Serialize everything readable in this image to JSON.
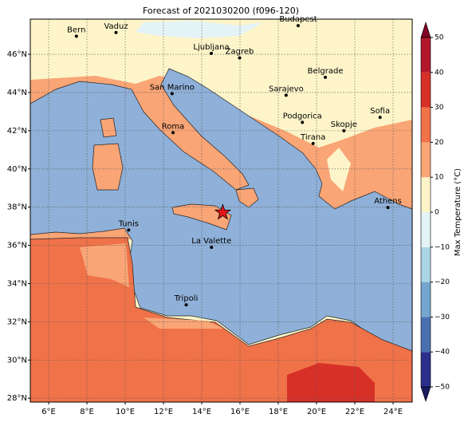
{
  "title": "Forecast of 2021030200 (f096-120)",
  "map": {
    "lonlim": [
      5.04,
      25.0
    ],
    "latlim": [
      27.8,
      47.84
    ],
    "lonticks": [
      {
        "value": 6,
        "label": "6°E"
      },
      {
        "value": 8,
        "label": "8°E"
      },
      {
        "value": 10,
        "label": "10°E"
      },
      {
        "value": 12,
        "label": "12°E"
      },
      {
        "value": 14,
        "label": "14°E"
      },
      {
        "value": 16,
        "label": "16°E"
      },
      {
        "value": 18,
        "label": "18°E"
      },
      {
        "value": 20,
        "label": "20°E"
      },
      {
        "value": 22,
        "label": "22°E"
      },
      {
        "value": 24,
        "label": "24°E"
      }
    ],
    "latticks": [
      {
        "value": 28,
        "label": "28°N"
      },
      {
        "value": 30,
        "label": "30°N"
      },
      {
        "value": 32,
        "label": "32°N"
      },
      {
        "value": 34,
        "label": "34°N"
      },
      {
        "value": 36,
        "label": "36°N"
      },
      {
        "value": 38,
        "label": "38°N"
      },
      {
        "value": 40,
        "label": "40°N"
      },
      {
        "value": 42,
        "label": "42°N"
      },
      {
        "value": 44,
        "label": "44°N"
      },
      {
        "value": 46,
        "label": "46°N"
      }
    ],
    "grid": true,
    "cities": [
      {
        "name": "Bern",
        "lon": 7.45,
        "lat": 46.95
      },
      {
        "name": "Vaduz",
        "lon": 9.52,
        "lat": 47.14
      },
      {
        "name": "Budapest",
        "lon": 19.04,
        "lat": 47.5
      },
      {
        "name": "Ljubljana",
        "lon": 14.5,
        "lat": 46.05
      },
      {
        "name": "Zagreb",
        "lon": 15.98,
        "lat": 45.81
      },
      {
        "name": "Belgrade",
        "lon": 20.46,
        "lat": 44.8
      },
      {
        "name": "San Marino",
        "lon": 12.45,
        "lat": 43.94
      },
      {
        "name": "Sarajevo",
        "lon": 18.41,
        "lat": 43.86
      },
      {
        "name": "Sofia",
        "lon": 23.32,
        "lat": 42.7
      },
      {
        "name": "Podgorica",
        "lon": 19.26,
        "lat": 42.44
      },
      {
        "name": "Skopje",
        "lon": 21.43,
        "lat": 42.0
      },
      {
        "name": "Roma",
        "lon": 12.5,
        "lat": 41.9
      },
      {
        "name": "Tirana",
        "lon": 19.82,
        "lat": 41.33
      },
      {
        "name": "Athens",
        "lon": 23.73,
        "lat": 37.98
      },
      {
        "name": "Tunis",
        "lon": 10.18,
        "lat": 36.8
      },
      {
        "name": "La Valette",
        "lon": 14.51,
        "lat": 35.9
      },
      {
        "name": "Tripoli",
        "lon": 13.19,
        "lat": 32.89
      }
    ],
    "star": {
      "lon": 15.1,
      "lat": 37.72,
      "color": "#e8141c"
    }
  },
  "colorbar": {
    "label": "Max Temperature (°C)",
    "ticks": [
      {
        "value": -50,
        "label": "−50"
      },
      {
        "value": -40,
        "label": "−40"
      },
      {
        "value": -30,
        "label": "−30"
      },
      {
        "value": -20,
        "label": "−20"
      },
      {
        "value": -10,
        "label": "−10"
      },
      0,
      10,
      20,
      30,
      40,
      50
    ],
    "colors": [
      "#2c2f8c",
      "#4a6fb0",
      "#74a6cf",
      "#abd4e5",
      "#e4f3f6",
      "#fdf5c9",
      "#f9a576",
      "#f07249",
      "#d73027",
      "#b2182b"
    ],
    "extend_colors": [
      "#1a1a5e",
      "#800026"
    ]
  }
}
